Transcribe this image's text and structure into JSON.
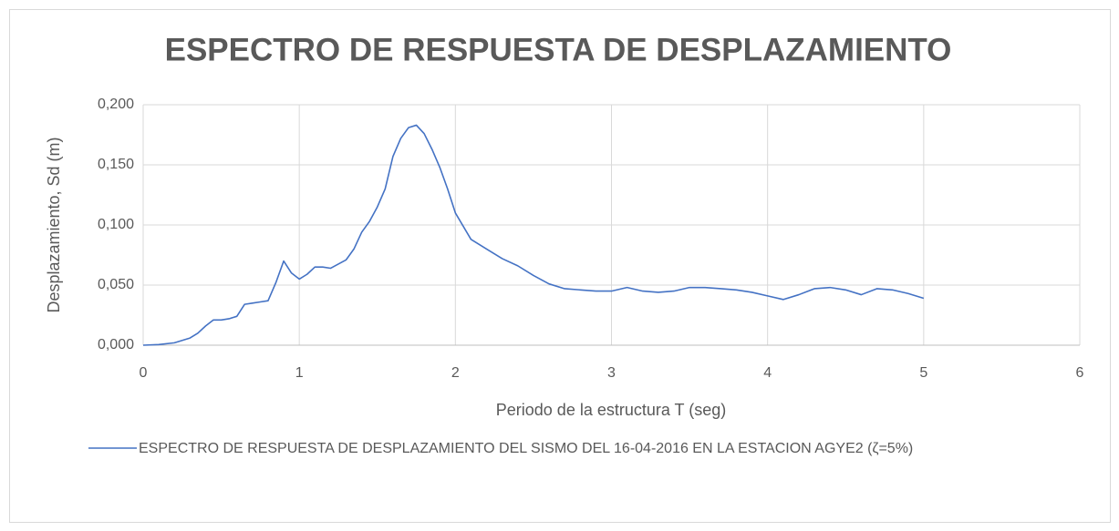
{
  "chart_data": {
    "type": "line",
    "title": "ESPECTRO DE RESPUESTA DE DESPLAZAMIENTO",
    "xlabel": "Periodo de la estructura T (seg)",
    "ylabel": "Desplazamiento, Sd  (m)",
    "x": [
      0,
      0.1,
      0.2,
      0.25,
      0.3,
      0.35,
      0.4,
      0.45,
      0.5,
      0.55,
      0.6,
      0.65,
      0.7,
      0.75,
      0.8,
      0.85,
      0.9,
      0.95,
      1.0,
      1.05,
      1.1,
      1.15,
      1.2,
      1.3,
      1.35,
      1.4,
      1.45,
      1.5,
      1.55,
      1.6,
      1.65,
      1.7,
      1.75,
      1.8,
      1.85,
      1.9,
      1.95,
      2.0,
      2.1,
      2.2,
      2.3,
      2.4,
      2.5,
      2.6,
      2.7,
      2.8,
      2.9,
      3.0,
      3.1,
      3.2,
      3.3,
      3.4,
      3.5,
      3.6,
      3.7,
      3.8,
      3.9,
      4.0,
      4.1,
      4.2,
      4.3,
      4.4,
      4.5,
      4.6,
      4.7,
      4.8,
      4.9,
      5.0
    ],
    "series": [
      {
        "name": "ESPECTRO DE RESPUESTA  DE DESPLAZAMIENTO  DEL SISMO DEL 16-04-2016 EN LA ESTACION AGYE2 (ζ=5%)",
        "color": "#4472c4",
        "values": [
          0,
          0.0005,
          0.002,
          0.004,
          0.006,
          0.01,
          0.016,
          0.021,
          0.021,
          0.022,
          0.024,
          0.034,
          0.035,
          0.036,
          0.037,
          0.052,
          0.07,
          0.06,
          0.055,
          0.059,
          0.065,
          0.065,
          0.064,
          0.071,
          0.08,
          0.094,
          0.103,
          0.115,
          0.13,
          0.157,
          0.172,
          0.181,
          0.183,
          0.176,
          0.163,
          0.148,
          0.13,
          0.11,
          0.088,
          0.08,
          0.072,
          0.066,
          0.058,
          0.051,
          0.047,
          0.046,
          0.045,
          0.045,
          0.048,
          0.045,
          0.044,
          0.045,
          0.048,
          0.048,
          0.047,
          0.046,
          0.044,
          0.041,
          0.038,
          0.042,
          0.047,
          0.048,
          0.046,
          0.042,
          0.047,
          0.046,
          0.043,
          0.039
        ]
      }
    ],
    "xlim": [
      0,
      6
    ],
    "xticks": [
      0,
      1,
      2,
      3,
      4,
      5,
      6
    ],
    "ylim": [
      0,
      0.2
    ],
    "yticks": [
      {
        "value": 0,
        "label": "0,000"
      },
      {
        "value": 0.05,
        "label": "0,050"
      },
      {
        "value": 0.1,
        "label": "0,100"
      },
      {
        "value": 0.15,
        "label": "0,150"
      },
      {
        "value": 0.2,
        "label": "0,200"
      }
    ],
    "grid": true,
    "legend": "bottom"
  }
}
